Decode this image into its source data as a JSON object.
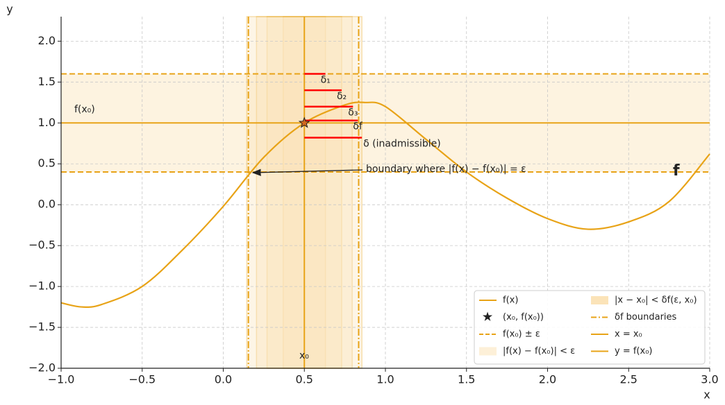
{
  "chart_data": {
    "type": "line",
    "x_label": "x",
    "y_label": "y",
    "xlim": [
      -1,
      3
    ],
    "ylim": [
      -2,
      2.3
    ],
    "xticks": [
      {
        "value": -1,
        "label": "−1.0"
      },
      {
        "value": -0.5,
        "label": "−0.5"
      },
      {
        "value": 0,
        "label": "0.0"
      },
      {
        "value": 0.5,
        "label": "0.5"
      },
      {
        "value": 1,
        "label": "1.0"
      },
      {
        "value": 1.5,
        "label": "1.5"
      },
      {
        "value": 2,
        "label": "2.0"
      },
      {
        "value": 2.5,
        "label": "2.5"
      },
      {
        "value": 3,
        "label": "3.0"
      }
    ],
    "yticks": [
      {
        "value": -2,
        "label": "−2.0"
      },
      {
        "value": -1.5,
        "label": "−1.5"
      },
      {
        "value": -1,
        "label": "−1.0"
      },
      {
        "value": -0.5,
        "label": "−0.5"
      },
      {
        "value": 0,
        "label": "0.0"
      },
      {
        "value": 0.5,
        "label": "0.5"
      },
      {
        "value": 1,
        "label": "1.0"
      },
      {
        "value": 1.5,
        "label": "1.5"
      },
      {
        "value": 2,
        "label": "2.0"
      }
    ],
    "grid": true,
    "color": "#e8a317",
    "series": [
      {
        "name": "f(x)",
        "color": "#e8a317",
        "x": [
          -1,
          -0.875,
          -0.75,
          -0.5,
          -0.25,
          0,
          0.25,
          0.5,
          0.75,
          0.875,
          1,
          1.25,
          1.5,
          1.75,
          2,
          2.25,
          2.5,
          2.75,
          3
        ],
        "values": [
          -1.2,
          -1.25,
          -1.22,
          -1.0,
          -0.55,
          -0.02,
          0.58,
          1.0,
          1.22,
          1.25,
          1.2,
          0.8,
          0.4,
          0.08,
          -0.17,
          -0.3,
          -0.21,
          0.04,
          0.62
        ]
      }
    ],
    "marker": {
      "name": "(x₀, f(x₀))",
      "x": 0.5,
      "y": 1.0,
      "color": "#d2691e"
    },
    "eps_band": {
      "name": "|f(x) − f(x₀)| < ε",
      "edge_name": "f(x₀) ± ε",
      "y": [
        0.4,
        1.6
      ]
    },
    "delta_bands": {
      "name": "|x − x₀| < δf(ε, x₀)",
      "center": 0.5,
      "halfwidths": [
        0.13,
        0.23,
        0.295,
        0.355
      ]
    },
    "delta_boundaries": {
      "name": "δf boundaries",
      "x": [
        0.155,
        0.835
      ]
    },
    "x0_line": {
      "name": "x = x₀",
      "x": 0.5
    },
    "y0_line": {
      "name": "y = f(x₀)",
      "y": 1.0
    },
    "deltas": {
      "color": "#ff0000",
      "items": [
        {
          "label": "δ₁",
          "y": 1.6,
          "halfwidth": 0.13
        },
        {
          "label": "δ₂",
          "y": 1.4,
          "halfwidth": 0.23
        },
        {
          "label": "δ₃",
          "y": 1.2,
          "halfwidth": 0.3
        },
        {
          "label": "δf",
          "y": 1.03,
          "halfwidth": 0.33
        },
        {
          "label": "δ (inadmissible)",
          "y": 0.82,
          "halfwidth": 0.355
        }
      ]
    },
    "annotation": "boundary where |f(x) − f(x₀)| = ε",
    "fx0_label": "f(x₀)",
    "x0_label": "x₀",
    "curve_label": "f"
  }
}
